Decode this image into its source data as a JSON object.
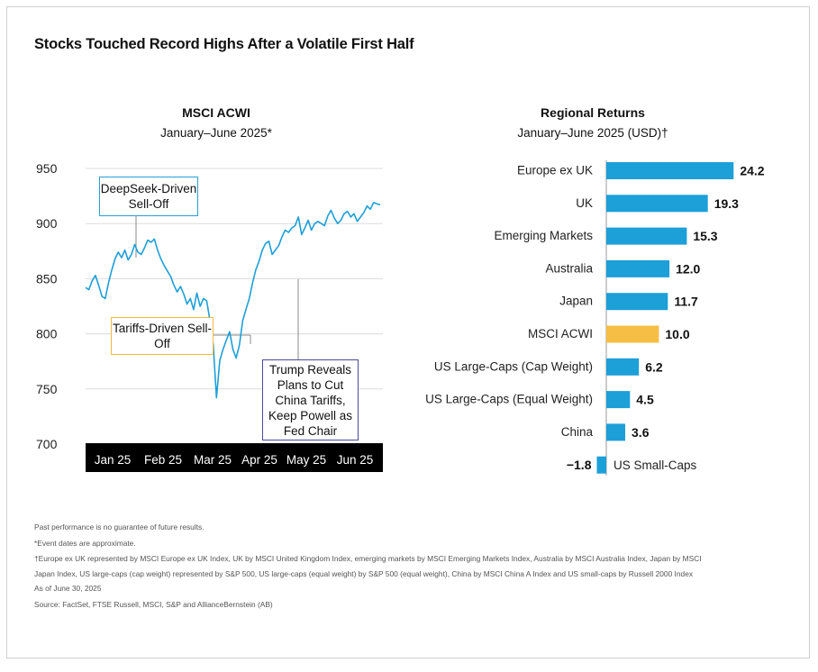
{
  "title": "Stocks Touched Record Highs After a Volatile First Half",
  "colors": {
    "line": "#1d9fd8",
    "bar": "#1d9fd8",
    "highlight_bar": "#f6be44",
    "axis_band": "#000000",
    "deepseek_box": "#2a9fd6",
    "tariffs_box": "#f5b942",
    "trump_box": "#4b4a9e"
  },
  "left_chart": {
    "heading": "MSCI ACWI",
    "subheading": "January–June 2025*",
    "annotations": {
      "deepseek": "DeepSeek-Driven Sell-Off",
      "tariffs": "Tariffs-Driven Sell-Off",
      "trump": "Trump Reveals Plans to Cut China Tariffs, Keep Powell as Fed Chair"
    }
  },
  "right_chart": {
    "heading": "Regional Returns",
    "subheading": "January–June 2025 (USD)†"
  },
  "chart_data": [
    {
      "type": "line",
      "title": "MSCI ACWI",
      "subtitle": "January–June 2025*",
      "xlabel": "",
      "ylabel": "",
      "ylim": [
        700,
        950
      ],
      "yticks": [
        700,
        750,
        800,
        850,
        900,
        950
      ],
      "xtick_labels": [
        "Jan 25",
        "Feb 25",
        "Mar 25",
        "Apr 25",
        "May 25",
        "Jun 25"
      ],
      "grid": true,
      "series": [
        {
          "name": "MSCI ACWI",
          "x": [
            0,
            2,
            4,
            6,
            8,
            10,
            12,
            14,
            16,
            18,
            20,
            22,
            24,
            26,
            28,
            30,
            32,
            34,
            36,
            38,
            40,
            42,
            44,
            46,
            48,
            50,
            52,
            54,
            56,
            58,
            60,
            62,
            64,
            66,
            68,
            70,
            72,
            74,
            76,
            78,
            80,
            82,
            84,
            86,
            88,
            90,
            92,
            94,
            96,
            98,
            100,
            102,
            104,
            106,
            108,
            110,
            112,
            114,
            116,
            118,
            120,
            122,
            124,
            126,
            128,
            130,
            132,
            134,
            136,
            138,
            140,
            142,
            144,
            146,
            148,
            150,
            152,
            154,
            156,
            158,
            160,
            162,
            164,
            166,
            168,
            170,
            172,
            174,
            176,
            178,
            180
          ],
          "values": [
            842,
            840,
            848,
            853,
            844,
            834,
            832,
            846,
            858,
            868,
            874,
            869,
            876,
            867,
            872,
            881,
            874,
            872,
            878,
            885,
            883,
            886,
            876,
            868,
            862,
            857,
            852,
            844,
            838,
            843,
            836,
            827,
            832,
            822,
            837,
            825,
            832,
            830,
            812,
            790,
            742,
            776,
            786,
            794,
            802,
            786,
            778,
            790,
            812,
            822,
            832,
            846,
            858,
            866,
            876,
            882,
            884,
            872,
            876,
            880,
            888,
            894,
            892,
            896,
            898,
            906,
            890,
            896,
            903,
            894,
            900,
            902,
            900,
            898,
            907,
            912,
            905,
            900,
            903,
            909,
            911,
            906,
            909,
            902,
            906,
            910,
            916,
            913,
            919,
            918,
            917
          ]
        }
      ]
    },
    {
      "type": "bar",
      "orientation": "horizontal",
      "title": "Regional Returns",
      "subtitle": "January–June 2025 (USD)†",
      "categories": [
        "Europe ex UK",
        "UK",
        "Emerging Markets",
        "Australia",
        "Japan",
        "MSCI ACWI",
        "US Large-Caps (Cap Weight)",
        "US Large-Caps (Equal Weight)",
        "China",
        "US Small-Caps"
      ],
      "values": [
        24.2,
        19.3,
        15.3,
        12.0,
        11.7,
        10.0,
        6.2,
        4.5,
        3.6,
        -1.8
      ],
      "value_labels": [
        "24.2",
        "19.3",
        "15.3",
        "12.0",
        "11.7",
        "10.0",
        "6.2",
        "4.5",
        "3.6",
        "−1.8"
      ],
      "highlight": "MSCI ACWI",
      "xlabel": "",
      "ylabel": ""
    }
  ],
  "notes": [
    "Past performance is no guarantee of future results.",
    "*Event dates are approximate.",
    "†Europe ex UK represented by MSCI Europe ex UK Index, UK by MSCI United Kingdom Index, emerging markets by MSCI Emerging Markets Index, Australia by MSCI Australia Index, Japan by MSCI",
    "Japan Index, US large-caps (cap weight) represented by S&P 500, US large-caps (equal weight) by S&P 500 (equal weight), China by MSCI China A Index and US small-caps by Russell 2000 Index",
    "As of June 30, 2025",
    "Source: FactSet, FTSE Russell, MSCI, S&P and AllianceBernstein (AB)"
  ]
}
